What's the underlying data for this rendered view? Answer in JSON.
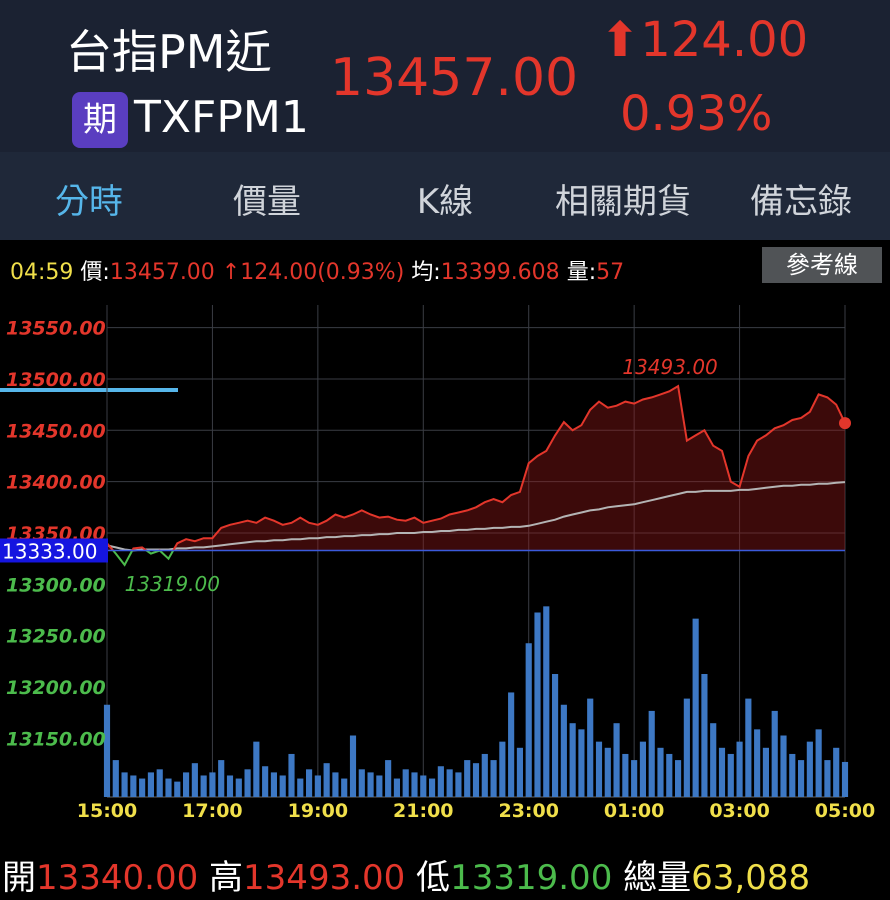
{
  "header": {
    "title": "台指PM近",
    "badge": "期",
    "code": "TXFPM1",
    "price": "13457.00",
    "change": "⬆124.00",
    "change_pct": "0.93%"
  },
  "tabs": [
    "分時",
    "價量",
    "K線",
    "相關期貨",
    "備忘錄"
  ],
  "status": {
    "time": "04:59",
    "price_label": "價:",
    "price": "13457.00",
    "change": "↑124.00(0.93%)",
    "avg_label": "均:",
    "avg": "13399.608",
    "vol_label": "量:",
    "vol": "57",
    "button": "參考線"
  },
  "chart_data": {
    "type": "line",
    "x": [
      "15:00",
      "15:10",
      "15:20",
      "15:30",
      "15:40",
      "15:50",
      "16:00",
      "16:10",
      "16:20",
      "16:30",
      "16:40",
      "16:50",
      "17:00",
      "17:10",
      "17:20",
      "17:30",
      "17:40",
      "17:50",
      "18:00",
      "18:10",
      "18:20",
      "18:30",
      "18:40",
      "18:50",
      "19:00",
      "19:10",
      "19:20",
      "19:30",
      "19:40",
      "19:50",
      "20:00",
      "20:10",
      "20:20",
      "20:30",
      "20:40",
      "20:50",
      "21:00",
      "21:10",
      "21:20",
      "21:30",
      "21:40",
      "21:50",
      "22:00",
      "22:10",
      "22:20",
      "22:30",
      "22:40",
      "22:50",
      "23:00",
      "23:10",
      "23:20",
      "23:30",
      "23:40",
      "23:50",
      "00:00",
      "00:10",
      "00:20",
      "00:30",
      "00:40",
      "00:50",
      "01:00",
      "01:10",
      "01:20",
      "01:30",
      "01:40",
      "01:50",
      "02:00",
      "02:10",
      "02:20",
      "02:30",
      "02:40",
      "02:50",
      "03:00",
      "03:10",
      "03:20",
      "03:30",
      "03:40",
      "03:50",
      "04:00",
      "04:10",
      "04:20",
      "04:30",
      "04:40",
      "04:50",
      "05:00"
    ],
    "series": [
      {
        "color": "#e3362b",
        "down_color": "#4cbb4c",
        "values": [
          13340,
          13330,
          13319,
          13335,
          13336,
          13330,
          13333,
          13325,
          13340,
          13344,
          13342,
          13345,
          13345,
          13355,
          13358,
          13360,
          13362,
          13360,
          13365,
          13362,
          13358,
          13360,
          13365,
          13360,
          13358,
          13362,
          13368,
          13365,
          13368,
          13372,
          13368,
          13365,
          13366,
          13363,
          13362,
          13365,
          13360,
          13362,
          13364,
          13368,
          13370,
          13372,
          13375,
          13380,
          13383,
          13380,
          13387,
          13390,
          13418,
          13425,
          13430,
          13445,
          13458,
          13450,
          13455,
          13470,
          13478,
          13472,
          13474,
          13478,
          13476,
          13480,
          13482,
          13485,
          13488,
          13493,
          13440,
          13445,
          13450,
          13435,
          13430,
          13400,
          13395,
          13425,
          13440,
          13445,
          13452,
          13455,
          13460,
          13462,
          13468,
          13485,
          13482,
          13475,
          13457
        ]
      },
      {
        "color": "#b4b4b4",
        "values": [
          13338,
          13336,
          13334,
          13333,
          13334,
          13334,
          13334,
          13334,
          13335,
          13335,
          13336,
          13336,
          13337,
          13338,
          13339,
          13340,
          13341,
          13342,
          13342,
          13343,
          13343,
          13344,
          13344,
          13345,
          13345,
          13346,
          13346,
          13347,
          13347,
          13348,
          13348,
          13349,
          13349,
          13350,
          13350,
          13350,
          13351,
          13351,
          13352,
          13352,
          13353,
          13353,
          13354,
          13354,
          13355,
          13355,
          13356,
          13356,
          13357,
          13359,
          13361,
          13363,
          13366,
          13368,
          13370,
          13372,
          13373,
          13375,
          13376,
          13377,
          13378,
          13380,
          13382,
          13384,
          13386,
          13388,
          13390,
          13390,
          13391,
          13391,
          13391,
          13391,
          13392,
          13392,
          13393,
          13394,
          13395,
          13396,
          13396,
          13397,
          13397,
          13398,
          13398,
          13399,
          13399.608
        ]
      },
      {
        "type": "bar",
        "axis": "y2",
        "color": "#3d78c4",
        "values": [
          150,
          60,
          40,
          35,
          30,
          40,
          45,
          30,
          25,
          40,
          55,
          35,
          40,
          60,
          35,
          30,
          45,
          90,
          50,
          40,
          35,
          70,
          30,
          45,
          35,
          55,
          40,
          30,
          100,
          45,
          40,
          35,
          60,
          30,
          45,
          40,
          35,
          30,
          50,
          45,
          40,
          60,
          55,
          70,
          60,
          90,
          170,
          80,
          250,
          300,
          310,
          200,
          150,
          120,
          110,
          160,
          90,
          80,
          120,
          70,
          60,
          90,
          140,
          80,
          70,
          60,
          160,
          290,
          200,
          120,
          80,
          70,
          90,
          160,
          110,
          80,
          140,
          100,
          70,
          60,
          90,
          110,
          60,
          80,
          57
        ]
      }
    ],
    "ylim": [
      13093,
      13572
    ],
    "yticks": [
      {
        "value": 13550,
        "label": "13550.00"
      },
      {
        "value": 13500,
        "label": "13500.00"
      },
      {
        "value": 13450,
        "label": "13450.00"
      },
      {
        "value": 13400,
        "label": "13400.00"
      },
      {
        "value": 13350,
        "label": "13350.00"
      },
      {
        "value": 13300,
        "label": "13300.00"
      },
      {
        "value": 13250,
        "label": "13250.00"
      },
      {
        "value": 13200,
        "label": "13200.00"
      },
      {
        "value": 13150,
        "label": "13150.00"
      }
    ],
    "y2lim": [
      0,
      800
    ],
    "xticks": [
      "15:00",
      "17:00",
      "19:00",
      "21:00",
      "23:00",
      "01:00",
      "03:00",
      "05:00"
    ],
    "reference": {
      "value": 13333,
      "label": "13333.00"
    },
    "annotations": [
      {
        "text": "13493.00",
        "x": "01:50"
      },
      {
        "text": "13319.00",
        "x": "15:20"
      }
    ],
    "grid": true
  },
  "footer": [
    {
      "label": "開",
      "value": "13340.00"
    },
    {
      "label": "高",
      "value": "13493.00"
    },
    {
      "label": "低",
      "value": "13319.00"
    },
    {
      "label": "總量",
      "value": "63,088"
    }
  ]
}
